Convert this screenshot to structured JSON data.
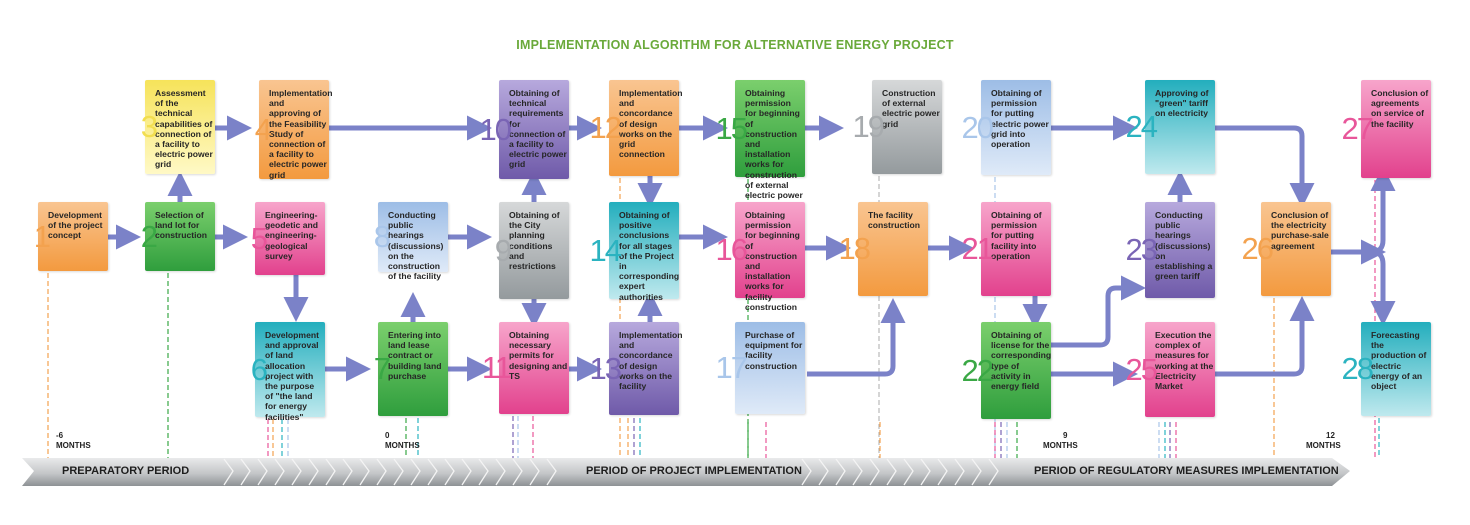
{
  "title": "IMPLEMENTATION ALGORITHM FOR ALTERNATIVE ENERGY PROJECT",
  "colors": {
    "orange": "#f5a04a",
    "green": "#3aa845",
    "yellow": "#f2e04a",
    "pink": "#e84a93",
    "teal": "#2bb6c2",
    "blue": "#a9c6ea",
    "purple": "#7a65b5",
    "gray": "#a3a8ab",
    "arrow": "#7b82c8",
    "title": "#6aa93a"
  },
  "steps": [
    {
      "n": "1",
      "color": "orange",
      "text": "Development of the project concept"
    },
    {
      "n": "2",
      "color": "green",
      "text": "Selection of land lot for construction"
    },
    {
      "n": "3",
      "color": "yellow",
      "text": "Assessment of the technical capabilities of connection of a facility to electric power grid"
    },
    {
      "n": "4",
      "color": "orange",
      "text": "Implementation and approving of the Feasibility Study of connection of a facility to electric power grid"
    },
    {
      "n": "5",
      "color": "pink",
      "text": "Engineering-geodetic and engineering-geological survey"
    },
    {
      "n": "6",
      "color": "teal",
      "text": "Development and approval of land allocation project with the purpose of \"the land for energy facilities\""
    },
    {
      "n": "7",
      "color": "green",
      "text": "Entering into land lease contract or building land purchase"
    },
    {
      "n": "8",
      "color": "blue",
      "text": "Conducting public hearings (discussions) on the construction of the facility"
    },
    {
      "n": "9",
      "color": "gray",
      "text": "Obtaining of the City planning conditions and restrictions"
    },
    {
      "n": "10",
      "color": "purple",
      "text": "Obtaining of technical requirements for connection of a facility to electric power grid"
    },
    {
      "n": "11",
      "color": "pink",
      "text": "Obtaining necessary permits for designing and TS"
    },
    {
      "n": "12",
      "color": "orange",
      "text": "Implementation and concordance of design works on the grid connection"
    },
    {
      "n": "13",
      "color": "purple",
      "text": "Implementation and concordance of design works on the facility"
    },
    {
      "n": "14",
      "color": "teal",
      "text": "Obtaining of positive conclusions for all stages of the Project in corresponding expert authorities"
    },
    {
      "n": "15",
      "color": "green",
      "text": "Obtaining permission for beginning of construction and installation works for construction of external electric power grid"
    },
    {
      "n": "16",
      "color": "pink",
      "text": "Obtaining permission for beginning of construction and installation works for facility construction"
    },
    {
      "n": "17",
      "color": "blue",
      "text": "Purchase of equipment for facility construction"
    },
    {
      "n": "18",
      "color": "orange",
      "text": "The facility construction"
    },
    {
      "n": "19",
      "color": "gray",
      "text": "Construction of external electric power grid"
    },
    {
      "n": "20",
      "color": "blue",
      "text": "Obtaining of permission for putting electric power grid into operation"
    },
    {
      "n": "21",
      "color": "pink",
      "text": "Obtaining of permission for putting facility into operation"
    },
    {
      "n": "22",
      "color": "green",
      "text": "Obtaining of license for the corresponding type of activity in energy field"
    },
    {
      "n": "23",
      "color": "purple",
      "text": "Conducting public hearings (discussions) on establishing a green tariff"
    },
    {
      "n": "24",
      "color": "teal",
      "text": "Approving of \"green\" tariff on electricity"
    },
    {
      "n": "25",
      "color": "pink",
      "text": "Execution the complex of measures for working at the Electricity Market"
    },
    {
      "n": "26",
      "color": "orange",
      "text": "Conclusion of the electricity purchase-sale agreement"
    },
    {
      "n": "27",
      "color": "pink",
      "text": "Conclusion of agreements on service of the facility"
    },
    {
      "n": "28",
      "color": "teal",
      "text": "Forecasting the production of electric energy of an object"
    }
  ],
  "months": [
    {
      "value": "-6",
      "unit": "MONTHS"
    },
    {
      "value": "0",
      "unit": "MONTHS"
    },
    {
      "value": "9",
      "unit": "MONTHS"
    },
    {
      "value": "12",
      "unit": "MONTHS"
    }
  ],
  "periods": [
    "PREPARATORY PERIOD",
    "PERIOD OF PROJECT IMPLEMENTATION",
    "PERIOD OF REGULATORY MEASURES IMPLEMENTATION"
  ]
}
